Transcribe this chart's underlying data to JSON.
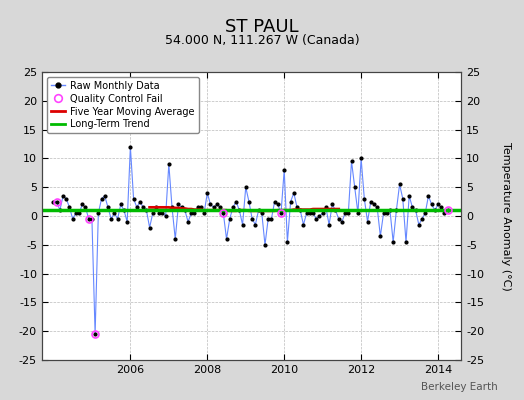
{
  "title": "ST PAUL",
  "subtitle": "54.000 N, 111.267 W (Canada)",
  "ylabel": "Temperature Anomaly (°C)",
  "watermark": "Berkeley Earth",
  "ylim": [
    -25,
    25
  ],
  "yticks": [
    -25,
    -20,
    -15,
    -10,
    -5,
    0,
    5,
    10,
    15,
    20,
    25
  ],
  "xlim_start": 2003.7,
  "xlim_end": 2014.6,
  "xticks": [
    2006,
    2008,
    2010,
    2012,
    2014
  ],
  "bg_color": "#d8d8d8",
  "plot_bg_color": "#ffffff",
  "raw_line_color": "#6688ff",
  "raw_dot_color": "#000000",
  "moving_avg_color": "#dd0000",
  "trend_color": "#00bb00",
  "qc_fail_color": "#ff44ff",
  "raw_monthly_data": [
    [
      2004.0,
      2.5
    ],
    [
      2004.083,
      2.5
    ],
    [
      2004.167,
      1.0
    ],
    [
      2004.25,
      3.5
    ],
    [
      2004.333,
      3.0
    ],
    [
      2004.417,
      1.5
    ],
    [
      2004.5,
      -0.5
    ],
    [
      2004.583,
      0.5
    ],
    [
      2004.667,
      0.5
    ],
    [
      2004.75,
      2.0
    ],
    [
      2004.833,
      1.5
    ],
    [
      2004.917,
      -0.5
    ],
    [
      2005.0,
      -0.5
    ],
    [
      2005.083,
      -20.5
    ],
    [
      2005.167,
      0.5
    ],
    [
      2005.25,
      3.0
    ],
    [
      2005.333,
      3.5
    ],
    [
      2005.417,
      1.5
    ],
    [
      2005.5,
      -0.5
    ],
    [
      2005.583,
      0.5
    ],
    [
      2005.667,
      -0.5
    ],
    [
      2005.75,
      2.0
    ],
    [
      2005.833,
      1.0
    ],
    [
      2005.917,
      -1.0
    ],
    [
      2006.0,
      12.0
    ],
    [
      2006.083,
      3.0
    ],
    [
      2006.167,
      1.5
    ],
    [
      2006.25,
      2.5
    ],
    [
      2006.333,
      1.5
    ],
    [
      2006.417,
      1.0
    ],
    [
      2006.5,
      -2.0
    ],
    [
      2006.583,
      0.5
    ],
    [
      2006.667,
      1.5
    ],
    [
      2006.75,
      0.5
    ],
    [
      2006.833,
      0.5
    ],
    [
      2006.917,
      0.0
    ],
    [
      2007.0,
      9.0
    ],
    [
      2007.083,
      1.5
    ],
    [
      2007.167,
      -4.0
    ],
    [
      2007.25,
      2.0
    ],
    [
      2007.333,
      1.5
    ],
    [
      2007.417,
      1.0
    ],
    [
      2007.5,
      -1.0
    ],
    [
      2007.583,
      0.5
    ],
    [
      2007.667,
      0.5
    ],
    [
      2007.75,
      1.5
    ],
    [
      2007.833,
      1.5
    ],
    [
      2007.917,
      0.5
    ],
    [
      2008.0,
      4.0
    ],
    [
      2008.083,
      2.0
    ],
    [
      2008.167,
      1.5
    ],
    [
      2008.25,
      2.0
    ],
    [
      2008.333,
      1.5
    ],
    [
      2008.417,
      0.5
    ],
    [
      2008.5,
      -4.0
    ],
    [
      2008.583,
      -0.5
    ],
    [
      2008.667,
      1.5
    ],
    [
      2008.75,
      2.5
    ],
    [
      2008.833,
      1.0
    ],
    [
      2008.917,
      -1.5
    ],
    [
      2009.0,
      5.0
    ],
    [
      2009.083,
      2.5
    ],
    [
      2009.167,
      -0.5
    ],
    [
      2009.25,
      -1.5
    ],
    [
      2009.333,
      1.0
    ],
    [
      2009.417,
      0.5
    ],
    [
      2009.5,
      -5.0
    ],
    [
      2009.583,
      -0.5
    ],
    [
      2009.667,
      -0.5
    ],
    [
      2009.75,
      2.5
    ],
    [
      2009.833,
      2.0
    ],
    [
      2009.917,
      0.5
    ],
    [
      2010.0,
      8.0
    ],
    [
      2010.083,
      -4.5
    ],
    [
      2010.167,
      2.5
    ],
    [
      2010.25,
      4.0
    ],
    [
      2010.333,
      1.5
    ],
    [
      2010.417,
      1.0
    ],
    [
      2010.5,
      -1.5
    ],
    [
      2010.583,
      0.5
    ],
    [
      2010.667,
      0.5
    ],
    [
      2010.75,
      0.5
    ],
    [
      2010.833,
      -0.5
    ],
    [
      2010.917,
      0.0
    ],
    [
      2011.0,
      0.5
    ],
    [
      2011.083,
      1.5
    ],
    [
      2011.167,
      -1.5
    ],
    [
      2011.25,
      2.0
    ],
    [
      2011.333,
      1.0
    ],
    [
      2011.417,
      -0.5
    ],
    [
      2011.5,
      -1.0
    ],
    [
      2011.583,
      0.5
    ],
    [
      2011.667,
      0.5
    ],
    [
      2011.75,
      9.5
    ],
    [
      2011.833,
      5.0
    ],
    [
      2011.917,
      0.5
    ],
    [
      2012.0,
      10.0
    ],
    [
      2012.083,
      3.0
    ],
    [
      2012.167,
      -1.0
    ],
    [
      2012.25,
      2.5
    ],
    [
      2012.333,
      2.0
    ],
    [
      2012.417,
      1.5
    ],
    [
      2012.5,
      -3.5
    ],
    [
      2012.583,
      0.5
    ],
    [
      2012.667,
      0.5
    ],
    [
      2012.75,
      1.0
    ],
    [
      2012.833,
      -4.5
    ],
    [
      2012.917,
      1.0
    ],
    [
      2013.0,
      5.5
    ],
    [
      2013.083,
      3.0
    ],
    [
      2013.167,
      -4.5
    ],
    [
      2013.25,
      3.5
    ],
    [
      2013.333,
      1.5
    ],
    [
      2013.417,
      1.0
    ],
    [
      2013.5,
      -1.5
    ],
    [
      2013.583,
      -0.5
    ],
    [
      2013.667,
      0.5
    ],
    [
      2013.75,
      3.5
    ],
    [
      2013.833,
      2.0
    ],
    [
      2013.917,
      1.0
    ],
    [
      2014.0,
      2.0
    ],
    [
      2014.083,
      1.5
    ],
    [
      2014.167,
      0.5
    ],
    [
      2014.25,
      1.0
    ]
  ],
  "qc_fail_points": [
    [
      2004.083,
      2.5
    ],
    [
      2004.917,
      -0.5
    ],
    [
      2005.083,
      -20.5
    ],
    [
      2008.417,
      0.5
    ],
    [
      2009.917,
      0.5
    ],
    [
      2014.25,
      1.0
    ]
  ],
  "moving_avg": [
    [
      2006.5,
      1.5
    ],
    [
      2006.583,
      1.5
    ],
    [
      2006.667,
      1.5
    ],
    [
      2006.75,
      1.5
    ],
    [
      2006.833,
      1.5
    ],
    [
      2006.917,
      1.5
    ],
    [
      2007.0,
      1.5
    ],
    [
      2007.083,
      1.4
    ],
    [
      2007.167,
      1.4
    ],
    [
      2007.25,
      1.4
    ],
    [
      2007.333,
      1.3
    ],
    [
      2007.417,
      1.3
    ],
    [
      2007.5,
      1.2
    ],
    [
      2007.583,
      1.2
    ],
    [
      2007.667,
      1.1
    ],
    [
      2007.75,
      1.1
    ],
    [
      2007.833,
      1.1
    ],
    [
      2007.917,
      1.0
    ],
    [
      2008.0,
      1.0
    ],
    [
      2008.083,
      1.0
    ],
    [
      2008.167,
      1.0
    ],
    [
      2008.25,
      1.0
    ],
    [
      2008.333,
      1.0
    ],
    [
      2008.417,
      1.0
    ],
    [
      2008.5,
      1.0
    ],
    [
      2008.583,
      0.9
    ],
    [
      2008.667,
      0.9
    ],
    [
      2008.75,
      0.9
    ],
    [
      2008.833,
      1.0
    ],
    [
      2008.917,
      1.0
    ],
    [
      2009.0,
      1.0
    ],
    [
      2009.083,
      0.9
    ],
    [
      2009.167,
      0.9
    ],
    [
      2009.25,
      0.9
    ],
    [
      2009.333,
      0.9
    ],
    [
      2009.417,
      0.9
    ],
    [
      2009.5,
      0.9
    ],
    [
      2009.583,
      0.9
    ],
    [
      2009.667,
      0.9
    ],
    [
      2009.75,
      0.9
    ],
    [
      2009.833,
      1.0
    ],
    [
      2009.917,
      1.0
    ],
    [
      2010.0,
      1.0
    ],
    [
      2010.083,
      1.0
    ],
    [
      2010.167,
      1.0
    ],
    [
      2010.25,
      1.1
    ],
    [
      2010.333,
      1.1
    ],
    [
      2010.417,
      1.1
    ],
    [
      2010.5,
      1.1
    ],
    [
      2010.583,
      1.1
    ],
    [
      2010.667,
      1.1
    ],
    [
      2010.75,
      1.2
    ],
    [
      2010.833,
      1.2
    ],
    [
      2010.917,
      1.2
    ],
    [
      2011.0,
      1.2
    ],
    [
      2011.083,
      1.2
    ],
    [
      2011.167,
      1.2
    ],
    [
      2011.25,
      1.2
    ],
    [
      2011.333,
      1.2
    ],
    [
      2011.417,
      1.2
    ]
  ],
  "trend_x": [
    2003.7,
    2014.6
  ],
  "trend_y": [
    1.0,
    1.0
  ],
  "title_fontsize": 13,
  "subtitle_fontsize": 9,
  "tick_fontsize": 8,
  "ylabel_fontsize": 8
}
